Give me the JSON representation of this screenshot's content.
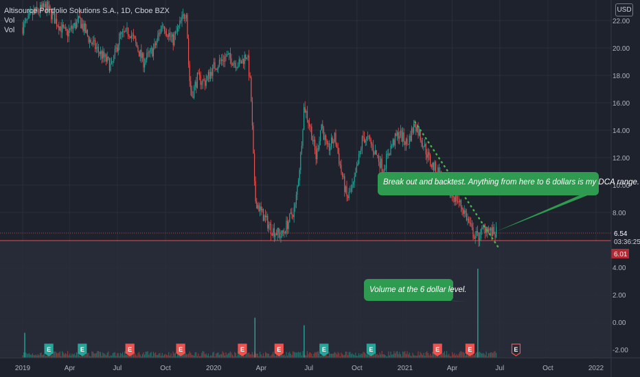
{
  "header": {
    "symbol_line": "Altisource Portfolio Solutions S.A., 1D, Cboe BZX",
    "vol_label_1": "Vol",
    "vol_label_2": "Vol"
  },
  "currency_button": "USD",
  "annotations": {
    "breakout": "Break out and backtest. Anything from here to 6 dollars is my DCA range.",
    "volume": "Volume at the 6 dollar level."
  },
  "price_labels": {
    "last_price": "6.54",
    "countdown": "03:36:25",
    "level": "6.01"
  },
  "earnings_marker": "E",
  "colors": {
    "background": "#1e222d",
    "up": "#26a69a",
    "down": "#ef5350",
    "callout": "#2e9b50",
    "trendline": "#4caf50",
    "support_line": "#ef5350",
    "axis_text": "#b2b5be"
  },
  "chart_data": {
    "type": "candlestick",
    "title": "Altisource Portfolio Solutions S.A., 1D, Cboe BZX",
    "xlabel": "",
    "ylabel": "",
    "x_tick_labels": [
      "2019",
      "Apr",
      "Jul",
      "Oct",
      "2020",
      "Apr",
      "Jul",
      "Oct",
      "2021",
      "Apr",
      "Jul",
      "Oct",
      "2022"
    ],
    "y_ticks": [
      22.0,
      20.0,
      18.0,
      16.0,
      14.0,
      12.0,
      10.0,
      8.0,
      4.0,
      2.0,
      0.0,
      -2.0
    ],
    "y_tick_labels": [
      "22.00",
      "20.00",
      "18.00",
      "16.00",
      "14.00",
      "12.00",
      "10.00",
      "8.00",
      "4.00",
      "2.00",
      "0.00",
      "-2.00"
    ],
    "ylim": [
      -2.2,
      23.0
    ],
    "grid": true,
    "price_path": [
      {
        "date": "2019-01-01",
        "price": 21.5
      },
      {
        "date": "2019-01-20",
        "price": 22.5
      },
      {
        "date": "2019-02-15",
        "price": 23.0
      },
      {
        "date": "2019-03-05",
        "price": 22.0
      },
      {
        "date": "2019-03-25",
        "price": 21.0
      },
      {
        "date": "2019-04-20",
        "price": 22.0
      },
      {
        "date": "2019-05-10",
        "price": 20.5
      },
      {
        "date": "2019-06-01",
        "price": 19.5
      },
      {
        "date": "2019-06-20",
        "price": 18.6
      },
      {
        "date": "2019-07-05",
        "price": 20.8
      },
      {
        "date": "2019-07-25",
        "price": 21.2
      },
      {
        "date": "2019-08-20",
        "price": 19.0
      },
      {
        "date": "2019-09-10",
        "price": 20.0
      },
      {
        "date": "2019-09-25",
        "price": 21.8
      },
      {
        "date": "2019-10-15",
        "price": 20.5
      },
      {
        "date": "2019-11-01",
        "price": 22.0
      },
      {
        "date": "2019-11-10",
        "price": 22.8
      },
      {
        "date": "2019-11-15",
        "price": 18.0
      },
      {
        "date": "2019-11-20",
        "price": 16.5
      },
      {
        "date": "2019-12-01",
        "price": 17.8
      },
      {
        "date": "2019-12-15",
        "price": 17.5
      },
      {
        "date": "2020-01-01",
        "price": 18.6
      },
      {
        "date": "2020-01-25",
        "price": 19.4
      },
      {
        "date": "2020-02-10",
        "price": 19.0
      },
      {
        "date": "2020-02-20",
        "price": 18.8
      },
      {
        "date": "2020-03-05",
        "price": 19.6
      },
      {
        "date": "2020-03-12",
        "price": 17.0
      },
      {
        "date": "2020-03-20",
        "price": 9.0
      },
      {
        "date": "2020-04-01",
        "price": 8.0
      },
      {
        "date": "2020-04-20",
        "price": 6.8
      },
      {
        "date": "2020-05-10",
        "price": 6.3
      },
      {
        "date": "2020-05-25",
        "price": 7.5
      },
      {
        "date": "2020-06-05",
        "price": 8.4
      },
      {
        "date": "2020-06-15",
        "price": 12.0
      },
      {
        "date": "2020-06-22",
        "price": 15.8
      },
      {
        "date": "2020-07-05",
        "price": 14.0
      },
      {
        "date": "2020-07-15",
        "price": 12.0
      },
      {
        "date": "2020-07-25",
        "price": 14.5
      },
      {
        "date": "2020-08-05",
        "price": 12.5
      },
      {
        "date": "2020-08-20",
        "price": 13.5
      },
      {
        "date": "2020-09-01",
        "price": 11.0
      },
      {
        "date": "2020-09-12",
        "price": 9.0
      },
      {
        "date": "2020-09-25",
        "price": 10.0
      },
      {
        "date": "2020-10-05",
        "price": 12.0
      },
      {
        "date": "2020-10-12",
        "price": 13.5
      },
      {
        "date": "2020-10-25",
        "price": 13.2
      },
      {
        "date": "2020-11-10",
        "price": 12.0
      },
      {
        "date": "2020-11-20",
        "price": 11.2
      },
      {
        "date": "2020-12-05",
        "price": 12.8
      },
      {
        "date": "2020-12-20",
        "price": 13.8
      },
      {
        "date": "2021-01-05",
        "price": 13.0
      },
      {
        "date": "2021-01-20",
        "price": 14.5
      },
      {
        "date": "2021-02-05",
        "price": 13.0
      },
      {
        "date": "2021-02-20",
        "price": 11.5
      },
      {
        "date": "2021-03-05",
        "price": 11.0
      },
      {
        "date": "2021-03-25",
        "price": 9.5
      },
      {
        "date": "2021-04-10",
        "price": 9.0
      },
      {
        "date": "2021-04-25",
        "price": 8.0
      },
      {
        "date": "2021-05-10",
        "price": 6.5
      },
      {
        "date": "2021-05-20",
        "price": 6.2
      },
      {
        "date": "2021-06-05",
        "price": 7.0
      },
      {
        "date": "2021-06-15",
        "price": 6.5
      },
      {
        "date": "2021-06-25",
        "price": 6.5
      }
    ],
    "price_range": {
      "low": 6.0,
      "high": 23.0
    },
    "volume_spikes": [
      {
        "date": "2019-01-05",
        "relative": 0.15
      },
      {
        "date": "2020-03-20",
        "relative": 0.35
      },
      {
        "date": "2020-06-22",
        "relative": 0.25
      },
      {
        "date": "2021-05-20",
        "relative": 1.0
      }
    ],
    "earnings_dates": [
      "2019-02-20",
      "2019-04-25",
      "2019-07-25",
      "2019-10-30",
      "2020-02-25",
      "2020-05-05",
      "2020-07-30",
      "2020-10-28",
      "2021-03-04",
      "2021-05-05",
      "2021-08-01"
    ],
    "trendline": {
      "start": {
        "date": "2021-01-20",
        "price": 14.6
      },
      "end": {
        "date": "2021-07-01",
        "price": 5.3
      }
    },
    "support_level": 6.01,
    "last_price": 6.54
  }
}
